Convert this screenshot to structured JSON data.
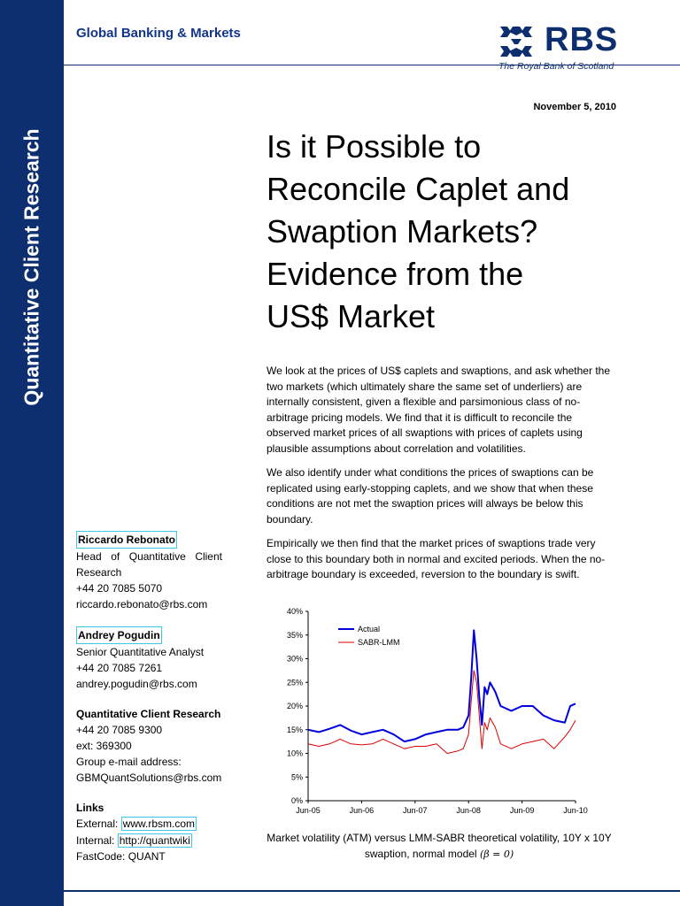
{
  "header": {
    "division": "Global Banking & Markets",
    "logo_word": "RBS",
    "logo_tagline": "The Royal Bank of Scotland",
    "sidebar_label": "Quantitative Client Research",
    "date": "November 5, 2010",
    "brand_color": "#0d2e6f"
  },
  "title": {
    "line1": "Is it Possible to",
    "line2": "Reconcile Caplet and",
    "line3": "Swaption Markets?",
    "line4": "Evidence from the",
    "line5": "US$ Market"
  },
  "abstract": {
    "p1": "We look at the prices of US$ caplets and swaptions, and ask whether the two markets (which ultimately share the same set of underliers) are internally consistent, given a flexible and parsimonious class of no-arbitrage pricing models. We find that it is difficult to reconcile the observed market prices of all swaptions with prices of caplets using plausible assumptions about correlation and volatilities.",
    "p2": "We also identify under what conditions the prices of swaptions can be replicated using early-stopping caplets, and we show that when these conditions are not met the swaption prices will always be below this boundary.",
    "p3": "Empirically we then find that the market prices of swaptions trade very close to this boundary both in normal and excited periods. When the no-arbitrage boundary is exceeded, reversion to the boundary is swift."
  },
  "contacts": {
    "rebonato": {
      "name": "Riccardo Rebonato",
      "role_line1": "Head of Quantitative Client",
      "role_line2": "Research",
      "phone": "+44 20 7085 5070",
      "email": "riccardo.rebonato@rbs.com"
    },
    "pogudin": {
      "name": "Andrey Pogudin",
      "role": "Senior Quantitative Analyst",
      "phone": "+44 20 7085 7261",
      "email": "andrey.pogudin@rbs.com"
    },
    "group": {
      "name": "Quantitative Client Research",
      "phone": "+44 20 7085 9300",
      "ext": "ext: 369300",
      "email_label": "Group e-mail address:",
      "email": "GBMQuantSolutions@rbs.com"
    },
    "links": {
      "heading": "Links",
      "external_label": "External: ",
      "external_url": "www.rbsm.com",
      "internal_label": "Internal: ",
      "internal_url": "http://quantwiki",
      "fastcode": "FastCode: QUANT"
    }
  },
  "caption": {
    "text": "Market volatility (ATM) versus LMM-SABR theoretical volatility, 10Y x 10Y swaption, normal model",
    "math": "(β = 0)"
  },
  "chart_data": {
    "type": "line",
    "x_tick_labels": [
      "Jun-05",
      "Jun-06",
      "Jun-07",
      "Jun-08",
      "Jun-09",
      "Jun-10"
    ],
    "y_tick_labels": [
      "0%",
      "5%",
      "10%",
      "15%",
      "20%",
      "25%",
      "30%",
      "35%",
      "40%"
    ],
    "ylim": [
      0,
      40
    ],
    "legend_position": "top-left",
    "series": [
      {
        "name": "Actual",
        "color": "#0000dd",
        "x": [
          0,
          0.2,
          0.4,
          0.6,
          0.8,
          1.0,
          1.2,
          1.4,
          1.6,
          1.8,
          2.0,
          2.2,
          2.4,
          2.6,
          2.8,
          2.9,
          3.0,
          3.05,
          3.1,
          3.15,
          3.2,
          3.25,
          3.3,
          3.35,
          3.4,
          3.5,
          3.6,
          3.8,
          4.0,
          4.2,
          4.4,
          4.6,
          4.8,
          4.9,
          5.0
        ],
        "y": [
          15.0,
          14.5,
          15.2,
          16.0,
          14.8,
          14.0,
          14.5,
          15.0,
          14.0,
          12.5,
          13.0,
          14.0,
          14.5,
          15.0,
          15.0,
          15.5,
          18.0,
          26.0,
          36.0,
          30.0,
          22.0,
          16.0,
          24.0,
          22.5,
          25.0,
          23.0,
          20.0,
          19.0,
          20.0,
          20.0,
          18.0,
          17.0,
          16.5,
          20.0,
          20.5
        ]
      },
      {
        "name": "SABR-LMM",
        "color": "#dd0000",
        "x": [
          0,
          0.2,
          0.4,
          0.6,
          0.8,
          1.0,
          1.2,
          1.4,
          1.6,
          1.8,
          2.0,
          2.2,
          2.4,
          2.6,
          2.8,
          2.9,
          3.0,
          3.05,
          3.1,
          3.15,
          3.2,
          3.25,
          3.3,
          3.35,
          3.4,
          3.5,
          3.6,
          3.8,
          4.0,
          4.2,
          4.4,
          4.6,
          4.8,
          4.9,
          5.0
        ],
        "y": [
          12.0,
          11.5,
          12.0,
          13.0,
          12.0,
          11.8,
          12.0,
          13.0,
          12.0,
          11.0,
          11.5,
          11.5,
          12.0,
          10.0,
          10.5,
          11.0,
          14.0,
          21.0,
          27.5,
          25.0,
          18.0,
          11.0,
          16.5,
          15.0,
          17.5,
          15.5,
          12.0,
          11.0,
          12.0,
          12.5,
          13.0,
          11.0,
          13.5,
          15.0,
          17.0
        ]
      }
    ]
  }
}
